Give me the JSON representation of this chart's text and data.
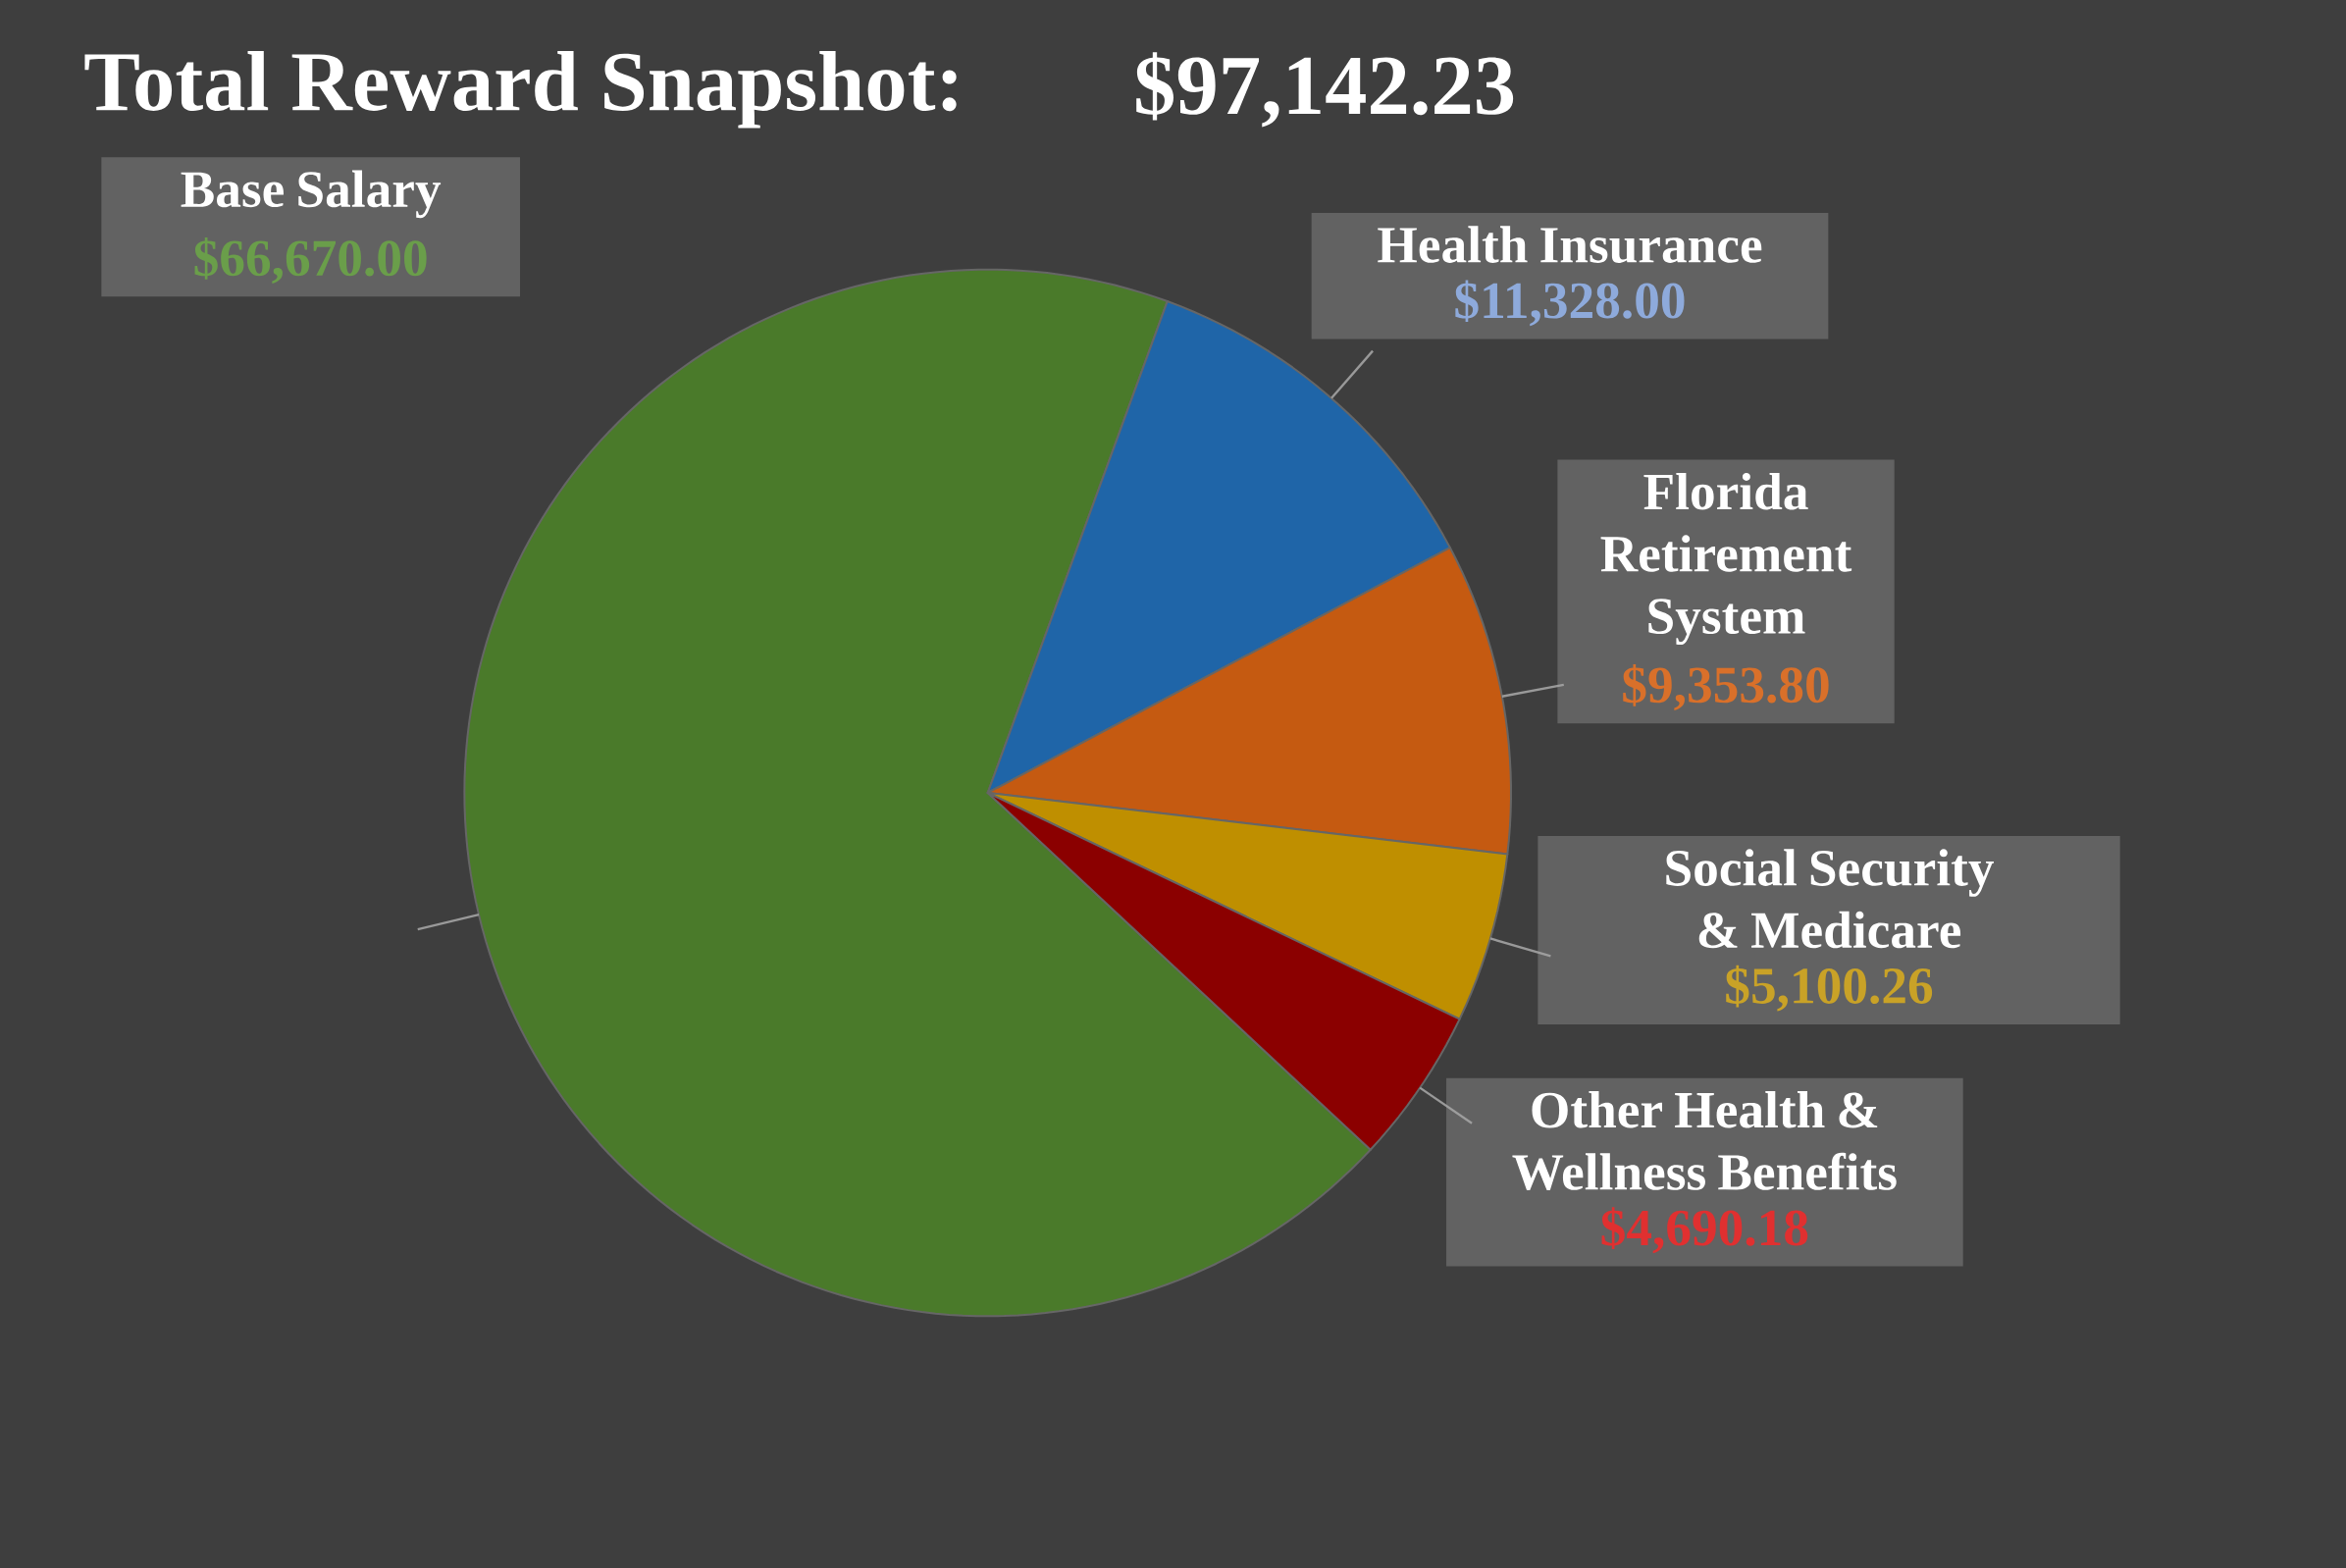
{
  "chart_data": {
    "type": "pie",
    "title": "Total Reward Snapshot:",
    "subtitle": "$97,142.23",
    "categories": [
      "Base Salary",
      "Health Insurance",
      "Florida Retirement System",
      "Social Security & Medicare",
      "Other Health & Wellness Benefits"
    ],
    "values": [
      66670.0,
      11328.0,
      9353.8,
      5100.26,
      4690.18
    ],
    "value_labels": [
      "$66,670.00",
      "$11,328.00",
      "$9,353.80",
      "$5,100.26",
      "$4,690.18"
    ],
    "colors": [
      "#4a7a2a",
      "#1f65a8",
      "#c55a11",
      "#bf8f00",
      "#8b0000"
    ]
  }
}
